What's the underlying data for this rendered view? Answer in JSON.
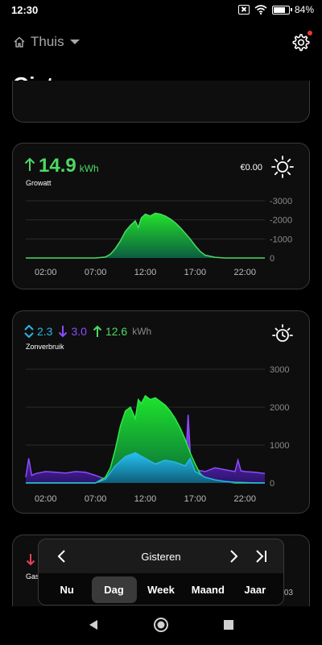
{
  "status_bar": {
    "time": "12:30",
    "battery_percent": "84%",
    "battery_level": 0.84
  },
  "header": {
    "home_name": "Thuis",
    "page_title": "Gisteren"
  },
  "growatt_card": {
    "value": "14.9",
    "unit": "kWh",
    "source": "Growatt",
    "cost": "€0.00",
    "icon": "sun-icon",
    "accent_color": "#4cd964"
  },
  "zon_card": {
    "value_blue": "2.3",
    "value_purple": "3.0",
    "value_green": "12.6",
    "unit": "kWh",
    "label": "Zonverbruik",
    "icon": "sun-clock-icon",
    "colors": {
      "blue": "#2ab6e6",
      "purple": "#8a4dff",
      "green": "#4cd964"
    }
  },
  "gas_card": {
    "label": "Gasv",
    "value_partial": "03"
  },
  "period_selector": {
    "current": "Gisteren",
    "tabs": [
      "Nu",
      "Dag",
      "Week",
      "Maand",
      "Jaar"
    ],
    "active_tab": "Dag"
  },
  "chart_data": [
    {
      "type": "area",
      "title": "",
      "x_ticks": [
        "02:00",
        "07:00",
        "12:00",
        "17:00",
        "22:00"
      ],
      "y_ticks": [
        "-3000",
        "-2000",
        "-1000",
        "0"
      ],
      "ylim": [
        0,
        3000
      ],
      "grid": true,
      "series": [
        {
          "x": [
            0,
            1,
            2,
            3,
            4,
            5,
            6,
            7,
            8,
            8.5,
            9,
            9.5,
            10,
            10.5,
            11,
            11.3,
            11.6,
            12,
            12.5,
            13,
            13.5,
            14,
            14.5,
            15,
            15.5,
            16,
            16.5,
            17,
            17.5,
            18,
            19,
            20,
            21,
            22,
            23,
            24
          ],
          "values": [
            0,
            0,
            0,
            0,
            0,
            0,
            0,
            0,
            50,
            200,
            500,
            900,
            1400,
            1700,
            1950,
            1600,
            2100,
            2300,
            2200,
            2350,
            2300,
            2200,
            2050,
            1850,
            1600,
            1300,
            1000,
            650,
            350,
            150,
            40,
            0,
            0,
            0,
            0,
            0
          ]
        }
      ]
    },
    {
      "type": "area",
      "title": "",
      "x_ticks": [
        "02:00",
        "07:00",
        "12:00",
        "17:00",
        "22:00"
      ],
      "y_ticks": [
        "3000",
        "2000",
        "1000",
        "0"
      ],
      "ylim": [
        0,
        3000
      ],
      "grid": true,
      "series": [
        {
          "x": [
            0,
            1,
            2,
            3,
            4,
            5,
            6,
            7,
            8,
            8.5,
            9,
            9.5,
            10,
            10.5,
            11,
            11.3,
            11.6,
            12,
            12.5,
            13,
            13.5,
            14,
            14.5,
            15,
            15.5,
            16,
            16.5,
            17,
            17.5,
            18,
            19,
            20,
            21,
            22,
            23,
            24
          ],
          "values": [
            0,
            0,
            0,
            0,
            0,
            0,
            0,
            0,
            150,
            400,
            900,
            1500,
            1900,
            2000,
            1700,
            2200,
            2100,
            2300,
            2200,
            2250,
            2150,
            2050,
            1900,
            1700,
            1450,
            1150,
            800,
            500,
            250,
            120,
            60,
            30,
            0,
            0,
            0,
            0
          ]
        },
        {
          "x": [
            0,
            2,
            4,
            6,
            7,
            8,
            9,
            10,
            11,
            12,
            13,
            14,
            15,
            16,
            16.5,
            17,
            18,
            19,
            20,
            21,
            22,
            23,
            24
          ],
          "values": [
            0,
            0,
            0,
            0,
            0,
            100,
            450,
            700,
            800,
            650,
            500,
            600,
            550,
            450,
            650,
            300,
            150,
            80,
            40,
            20,
            10,
            0,
            0
          ]
        },
        {
          "x": [
            0,
            0.3,
            0.6,
            1,
            2,
            3,
            4,
            5,
            6,
            7,
            8,
            16,
            16.3,
            16.6,
            17,
            18,
            19,
            20,
            21,
            21.3,
            21.6,
            22,
            23,
            24
          ],
          "values": [
            150,
            650,
            200,
            250,
            300,
            280,
            260,
            300,
            280,
            200,
            100,
            300,
            1800,
            400,
            350,
            300,
            400,
            350,
            300,
            600,
            320,
            300,
            280,
            250
          ]
        }
      ]
    }
  ]
}
